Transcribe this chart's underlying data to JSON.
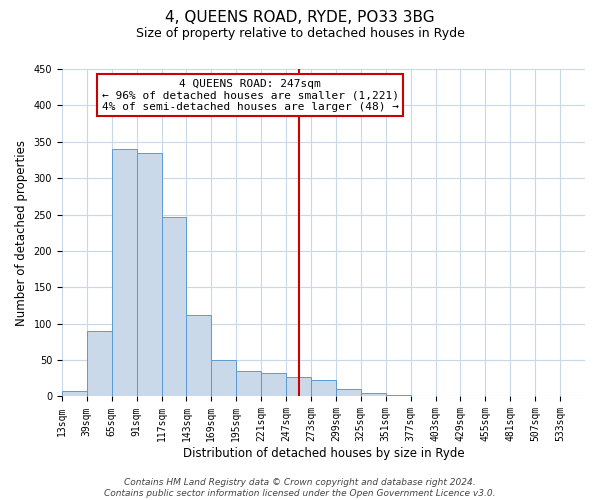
{
  "title": "4, QUEENS ROAD, RYDE, PO33 3BG",
  "subtitle": "Size of property relative to detached houses in Ryde",
  "xlabel": "Distribution of detached houses by size in Ryde",
  "ylabel": "Number of detached properties",
  "bin_labels": [
    "13sqm",
    "39sqm",
    "65sqm",
    "91sqm",
    "117sqm",
    "143sqm",
    "169sqm",
    "195sqm",
    "221sqm",
    "247sqm",
    "273sqm",
    "299sqm",
    "325sqm",
    "351sqm",
    "377sqm",
    "403sqm",
    "429sqm",
    "455sqm",
    "481sqm",
    "507sqm",
    "533sqm"
  ],
  "bin_edges": [
    0,
    26,
    52,
    78,
    104,
    130,
    156,
    182,
    208,
    234,
    260,
    286,
    312,
    338,
    364,
    390,
    416,
    442,
    468,
    494,
    520,
    546
  ],
  "bar_values": [
    7,
    90,
    340,
    335,
    247,
    112,
    50,
    35,
    32,
    27,
    22,
    10,
    5,
    2,
    1,
    1,
    0,
    0,
    0,
    0,
    1
  ],
  "bar_face_color": "#c9d9ea",
  "bar_edge_color": "#5b9bd5",
  "vline_color": "#cc0000",
  "annotation_title": "4 QUEENS ROAD: 247sqm",
  "annotation_line1": "← 96% of detached houses are smaller (1,221)",
  "annotation_line2": "4% of semi-detached houses are larger (48) →",
  "annotation_box_edge": "#cc0000",
  "annotation_box_face": "#ffffff",
  "ylim": [
    0,
    450
  ],
  "yticks": [
    0,
    50,
    100,
    150,
    200,
    250,
    300,
    350,
    400,
    450
  ],
  "footer_line1": "Contains HM Land Registry data © Crown copyright and database right 2024.",
  "footer_line2": "Contains public sector information licensed under the Open Government Licence v3.0.",
  "bg_color": "#ffffff",
  "grid_color": "#c8d8e8",
  "title_fontsize": 11,
  "subtitle_fontsize": 9,
  "axis_label_fontsize": 8.5,
  "tick_fontsize": 7,
  "annotation_fontsize": 8,
  "footer_fontsize": 6.5
}
